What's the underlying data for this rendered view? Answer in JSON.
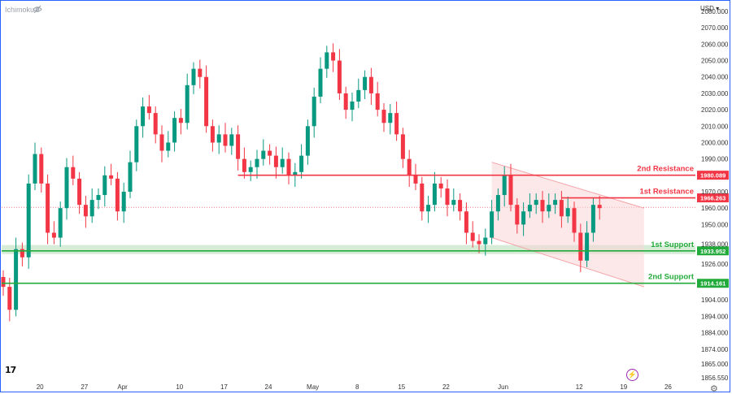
{
  "header": {
    "indicator": "Ichimoku",
    "currency": "USD"
  },
  "footer": {
    "logo": "17",
    "settings_icon": "gear-icon",
    "replay_icon": "lightning-icon"
  },
  "colors": {
    "resistance": "#f23645",
    "support": "#22ab3a",
    "up": "#089981",
    "down": "#f23645",
    "support_zone": "#c8e6c9",
    "channel": "#f9d6d6"
  },
  "chart_data": {
    "type": "candlestick",
    "instrument_currency": "USD",
    "y_ticks": [
      1856.55,
      1865.0,
      1874.0,
      1884.0,
      1894.0,
      1904.0,
      1914.161,
      1926.0,
      1933.952,
      1938.0,
      1950.0,
      1960.0,
      1966.263,
      1970.0,
      1980.089,
      1990.0,
      2000.0,
      2010.0,
      2020.0,
      2030.0,
      2040.0,
      2050.0,
      2060.0,
      2070.0,
      2080.0
    ],
    "y_tick_labels": [
      "1856.550",
      "1865.000",
      "1874.000",
      "1884.000",
      "1894.000",
      "1904.000",
      "1914.161",
      "1926.000",
      "1933.952",
      "1938.000",
      "1950.000",
      "1960.000",
      "1966.263",
      "1970.000",
      "1980.089",
      "1990.000",
      "2000.000",
      "2010.000",
      "2020.000",
      "2030.000",
      "2040.000",
      "2050.000",
      "2060.000",
      "2070.000",
      "2080.000"
    ],
    "x_ticks": [
      {
        "label": "20",
        "day": 4
      },
      {
        "label": "27",
        "day": 11
      },
      {
        "label": "Apr",
        "day": 17
      },
      {
        "label": "10",
        "day": 26
      },
      {
        "label": "17",
        "day": 33
      },
      {
        "label": "24",
        "day": 40
      },
      {
        "label": "May",
        "day": 47
      },
      {
        "label": "8",
        "day": 54
      },
      {
        "label": "15",
        "day": 61
      },
      {
        "label": "22",
        "day": 68
      },
      {
        "label": "Jun",
        "day": 77
      },
      {
        "label": "12",
        "day": 89
      },
      {
        "label": "19",
        "day": 96
      },
      {
        "label": "26",
        "day": 103
      }
    ],
    "levels": [
      {
        "name": "2nd Resistance",
        "value": 1980.089,
        "tag": "1980.089",
        "kind": "resistance"
      },
      {
        "name": "1st Resistance",
        "value": 1966.263,
        "tag": "1966.263",
        "kind": "resistance"
      },
      {
        "name": "1st Support",
        "value": 1933.952,
        "tag": "1933.952",
        "kind": "support"
      },
      {
        "name": "2nd Support",
        "value": 1914.161,
        "tag": "1914.161",
        "kind": "support"
      }
    ],
    "support_zone": [
      1932.0,
      1937.5
    ],
    "current_price": 1960.5,
    "descending_channel": {
      "upper": [
        {
          "day": 77,
          "price": 1988
        },
        {
          "day": 101,
          "price": 1960
        }
      ],
      "lower": [
        {
          "day": 77,
          "price": 1942
        },
        {
          "day": 101,
          "price": 1912
        }
      ]
    },
    "series": [
      {
        "day": 0,
        "close": 1912
      },
      {
        "day": 1,
        "close": 1898
      },
      {
        "day": 2,
        "close": 1935
      },
      {
        "day": 3,
        "close": 1930
      },
      {
        "day": 4,
        "close": 1975
      },
      {
        "day": 5,
        "close": 1993
      },
      {
        "day": 6,
        "close": 1975
      },
      {
        "day": 7,
        "close": 1945
      },
      {
        "day": 8,
        "close": 1942
      },
      {
        "day": 9,
        "close": 1960
      },
      {
        "day": 10,
        "close": 1985
      },
      {
        "day": 11,
        "close": 1978
      },
      {
        "day": 12,
        "close": 1962
      },
      {
        "day": 13,
        "close": 1955
      },
      {
        "day": 14,
        "close": 1965
      },
      {
        "day": 15,
        "close": 1968
      },
      {
        "day": 16,
        "close": 1980
      },
      {
        "day": 17,
        "close": 1978
      },
      {
        "day": 18,
        "close": 1958
      },
      {
        "day": 19,
        "close": 1970
      },
      {
        "day": 20,
        "close": 1988
      },
      {
        "day": 21,
        "close": 2010
      },
      {
        "day": 22,
        "close": 2022
      },
      {
        "day": 23,
        "close": 2018
      },
      {
        "day": 24,
        "close": 2005
      },
      {
        "day": 25,
        "close": 1995
      },
      {
        "day": 26,
        "close": 2000
      },
      {
        "day": 27,
        "close": 2015
      },
      {
        "day": 28,
        "close": 2012
      },
      {
        "day": 29,
        "close": 2035
      },
      {
        "day": 30,
        "close": 2045
      },
      {
        "day": 31,
        "close": 2040
      },
      {
        "day": 32,
        "close": 2010
      },
      {
        "day": 33,
        "close": 2000
      },
      {
        "day": 34,
        "close": 2005
      },
      {
        "day": 35,
        "close": 1998
      },
      {
        "day": 36,
        "close": 2005
      },
      {
        "day": 37,
        "close": 1990
      },
      {
        "day": 38,
        "close": 1982
      },
      {
        "day": 39,
        "close": 1985
      },
      {
        "day": 40,
        "close": 1990
      },
      {
        "day": 41,
        "close": 1995
      },
      {
        "day": 42,
        "close": 1992
      },
      {
        "day": 43,
        "close": 1985
      },
      {
        "day": 44,
        "close": 1990
      },
      {
        "day": 45,
        "close": 1980
      },
      {
        "day": 46,
        "close": 1982
      },
      {
        "day": 47,
        "close": 1992
      },
      {
        "day": 48,
        "close": 2010
      },
      {
        "day": 49,
        "close": 2028
      },
      {
        "day": 50,
        "close": 2045
      },
      {
        "day": 51,
        "close": 2055
      },
      {
        "day": 52,
        "close": 2050
      },
      {
        "day": 53,
        "close": 2030
      },
      {
        "day": 54,
        "close": 2020
      },
      {
        "day": 55,
        "close": 2025
      },
      {
        "day": 56,
        "close": 2032
      },
      {
        "day": 57,
        "close": 2040
      },
      {
        "day": 58,
        "close": 2030
      },
      {
        "day": 59,
        "close": 2020
      },
      {
        "day": 60,
        "close": 2012
      },
      {
        "day": 61,
        "close": 2018
      },
      {
        "day": 62,
        "close": 2005
      },
      {
        "day": 63,
        "close": 1990
      },
      {
        "day": 64,
        "close": 1980
      },
      {
        "day": 65,
        "close": 1975
      },
      {
        "day": 66,
        "close": 1958
      },
      {
        "day": 67,
        "close": 1962
      },
      {
        "day": 68,
        "close": 1975
      },
      {
        "day": 69,
        "close": 1972
      },
      {
        "day": 70,
        "close": 1962
      },
      {
        "day": 71,
        "close": 1965
      },
      {
        "day": 72,
        "close": 1958
      },
      {
        "day": 73,
        "close": 1945
      },
      {
        "day": 74,
        "close": 1940
      },
      {
        "day": 75,
        "close": 1938
      },
      {
        "day": 76,
        "close": 1942
      },
      {
        "day": 77,
        "close": 1958
      },
      {
        "day": 78,
        "close": 1968
      },
      {
        "day": 79,
        "close": 1980
      },
      {
        "day": 80,
        "close": 1962
      },
      {
        "day": 81,
        "close": 1950
      },
      {
        "day": 82,
        "close": 1958
      },
      {
        "day": 83,
        "close": 1962
      },
      {
        "day": 84,
        "close": 1965
      },
      {
        "day": 85,
        "close": 1958
      },
      {
        "day": 86,
        "close": 1962
      },
      {
        "day": 87,
        "close": 1965
      },
      {
        "day": 88,
        "close": 1955
      },
      {
        "day": 89,
        "close": 1960
      },
      {
        "day": 90,
        "close": 1945
      },
      {
        "day": 91,
        "close": 1928
      },
      {
        "day": 92,
        "close": 1945
      },
      {
        "day": 93,
        "close": 1962
      },
      {
        "day": 94,
        "close": 1960
      }
    ]
  }
}
